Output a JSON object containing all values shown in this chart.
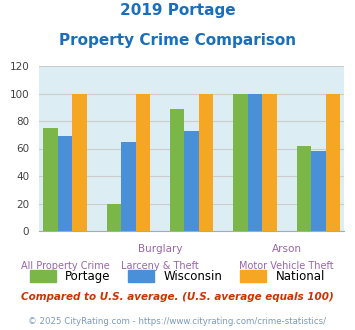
{
  "title_line1": "2019 Portage",
  "title_line2": "Property Crime Comparison",
  "title_color": "#1a6fbd",
  "group_labels_top": [
    "Burglary",
    "Arson"
  ],
  "group_labels_bottom": [
    "All Property Crime",
    "Larceny & Theft",
    "Motor Vehicle Theft"
  ],
  "portage": [
    75,
    20,
    89,
    100,
    62
  ],
  "wisconsin": [
    69,
    65,
    73,
    100,
    58
  ],
  "national": [
    100,
    100,
    100,
    100,
    100
  ],
  "bar_colors": {
    "portage": "#7ab648",
    "wisconsin": "#4a90d9",
    "national": "#f5a623"
  },
  "ylim": [
    0,
    120
  ],
  "yticks": [
    0,
    20,
    40,
    60,
    80,
    100,
    120
  ],
  "grid_color": "#cccccc",
  "plot_bg": "#dceef4",
  "legend_labels": [
    "Portage",
    "Wisconsin",
    "National"
  ],
  "footnote1": "Compared to U.S. average. (U.S. average equals 100)",
  "footnote2": "© 2025 CityRating.com - https://www.cityrating.com/crime-statistics/",
  "footnote1_color": "#cc3300",
  "footnote2_color": "#7a9abf",
  "xtick_color": "#9966aa"
}
